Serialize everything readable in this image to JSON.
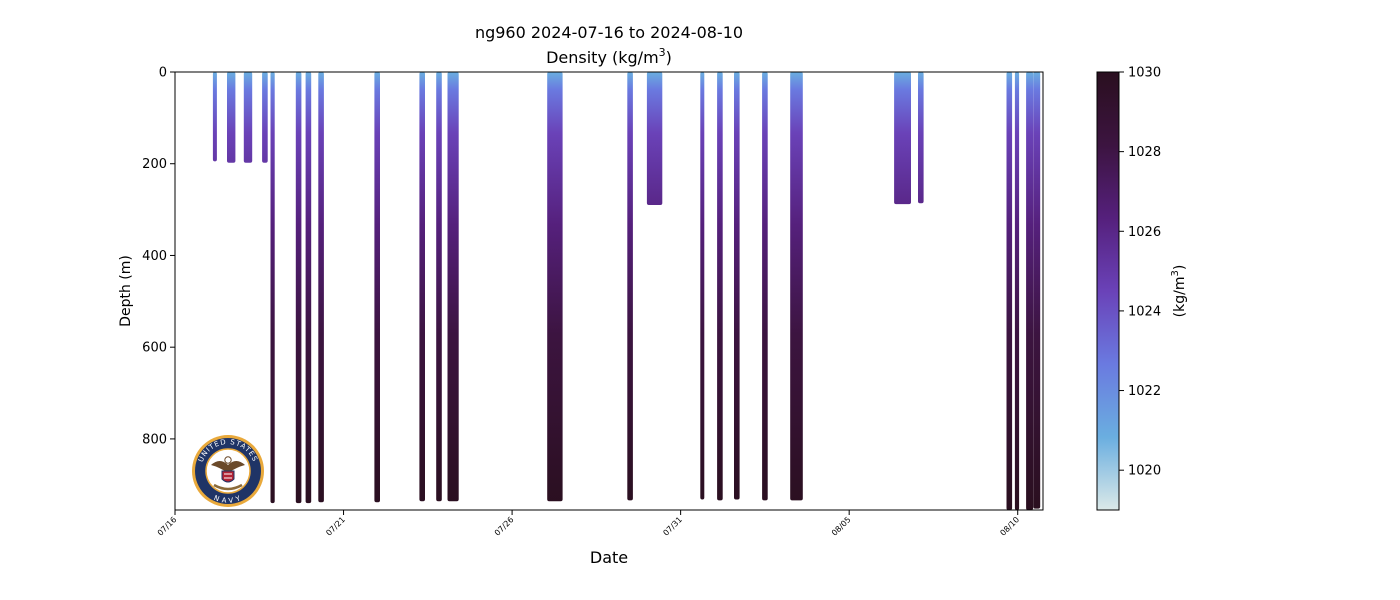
{
  "chart_data": {
    "type": "profile-section",
    "title_line1": "ng960 2024-07-16 to 2024-08-10",
    "title_line2_prefix": "Density (kg/m",
    "title_line2_sup": "3",
    "title_line2_suffix": ")",
    "xlabel": "Date",
    "ylabel": "Depth (m)",
    "x_axis": {
      "start": "2024-07-16",
      "end": "2024-08-10T18:00",
      "ticks": [
        {
          "date": "2024-07-16",
          "label": "07/16"
        },
        {
          "date": "2024-07-21",
          "label": "07/21"
        },
        {
          "date": "2024-07-26",
          "label": "07/26"
        },
        {
          "date": "2024-07-31",
          "label": "07/31"
        },
        {
          "date": "2024-08-05",
          "label": "08/05"
        },
        {
          "date": "2024-08-10",
          "label": "08/10"
        }
      ]
    },
    "y_axis": {
      "range": [
        0,
        955
      ],
      "inverted": true,
      "ticks": [
        0,
        200,
        400,
        600,
        800
      ],
      "tick_labels": [
        "0",
        "200",
        "400",
        "600",
        "800"
      ]
    },
    "colorbar": {
      "range": [
        1019,
        1030
      ],
      "ticks": [
        1020,
        1022,
        1024,
        1026,
        1028,
        1030
      ],
      "tick_labels": [
        "1020",
        "1022",
        "1024",
        "1026",
        "1028",
        "1030"
      ],
      "label_prefix": "(kg/m",
      "label_sup": "3",
      "label_suffix": ")",
      "colormap": [
        "#dbe9e8",
        "#6aaee0",
        "#6a7ae0",
        "#6a42b8",
        "#55207c",
        "#3c1440",
        "#2a0f1f"
      ]
    },
    "profile_groups": [
      {
        "start": "2024-07-17T03:00",
        "end": "2024-07-17T05:00",
        "max_depth": 195
      },
      {
        "start": "2024-07-17T13:00",
        "end": "2024-07-17T19:00",
        "max_depth": 198
      },
      {
        "start": "2024-07-18T01:00",
        "end": "2024-07-18T07:00",
        "max_depth": 198
      },
      {
        "start": "2024-07-18T14:00",
        "end": "2024-07-18T18:00",
        "max_depth": 198
      },
      {
        "start": "2024-07-18T20:00",
        "end": "2024-07-18T23:00",
        "max_depth": 940
      },
      {
        "start": "2024-07-19T14:00",
        "end": "2024-07-19T18:00",
        "max_depth": 940
      },
      {
        "start": "2024-07-19T21:00",
        "end": "2024-07-20T01:00",
        "max_depth": 940
      },
      {
        "start": "2024-07-20T06:00",
        "end": "2024-07-20T10:00",
        "max_depth": 938
      },
      {
        "start": "2024-07-21T22:00",
        "end": "2024-07-22T02:00",
        "max_depth": 938
      },
      {
        "start": "2024-07-23T06:00",
        "end": "2024-07-23T10:00",
        "max_depth": 936
      },
      {
        "start": "2024-07-23T18:00",
        "end": "2024-07-23T22:00",
        "max_depth": 936
      },
      {
        "start": "2024-07-24T02:00",
        "end": "2024-07-24T10:00",
        "max_depth": 936
      },
      {
        "start": "2024-07-27T01:00",
        "end": "2024-07-27T12:00",
        "max_depth": 936
      },
      {
        "start": "2024-07-29T10:00",
        "end": "2024-07-29T14:00",
        "max_depth": 934
      },
      {
        "start": "2024-07-30T00:00",
        "end": "2024-07-30T11:00",
        "max_depth": 290
      },
      {
        "start": "2024-07-31T14:00",
        "end": "2024-07-31T16:00",
        "max_depth": 932
      },
      {
        "start": "2024-08-01T02:00",
        "end": "2024-08-01T06:00",
        "max_depth": 934
      },
      {
        "start": "2024-08-01T14:00",
        "end": "2024-08-01T18:00",
        "max_depth": 932
      },
      {
        "start": "2024-08-02T10:00",
        "end": "2024-08-02T14:00",
        "max_depth": 934
      },
      {
        "start": "2024-08-03T06:00",
        "end": "2024-08-03T15:00",
        "max_depth": 934
      },
      {
        "start": "2024-08-06T08:00",
        "end": "2024-08-06T20:00",
        "max_depth": 288
      },
      {
        "start": "2024-08-07T01:00",
        "end": "2024-08-07T05:00",
        "max_depth": 286
      },
      {
        "start": "2024-08-09T16:00",
        "end": "2024-08-09T20:00",
        "max_depth": 955
      },
      {
        "start": "2024-08-09T22:00",
        "end": "2024-08-10T01:00",
        "max_depth": 955
      },
      {
        "start": "2024-08-10T06:00",
        "end": "2024-08-10T11:00",
        "max_depth": 955
      },
      {
        "start": "2024-08-10T11:00",
        "end": "2024-08-10T16:00",
        "max_depth": 952
      }
    ]
  },
  "logo": {
    "name": "navy-seal",
    "top_text": "UNITED STATES",
    "bottom_text": "NAVY",
    "ring_color": "#e9a93b",
    "band_color": "#1f3466"
  }
}
